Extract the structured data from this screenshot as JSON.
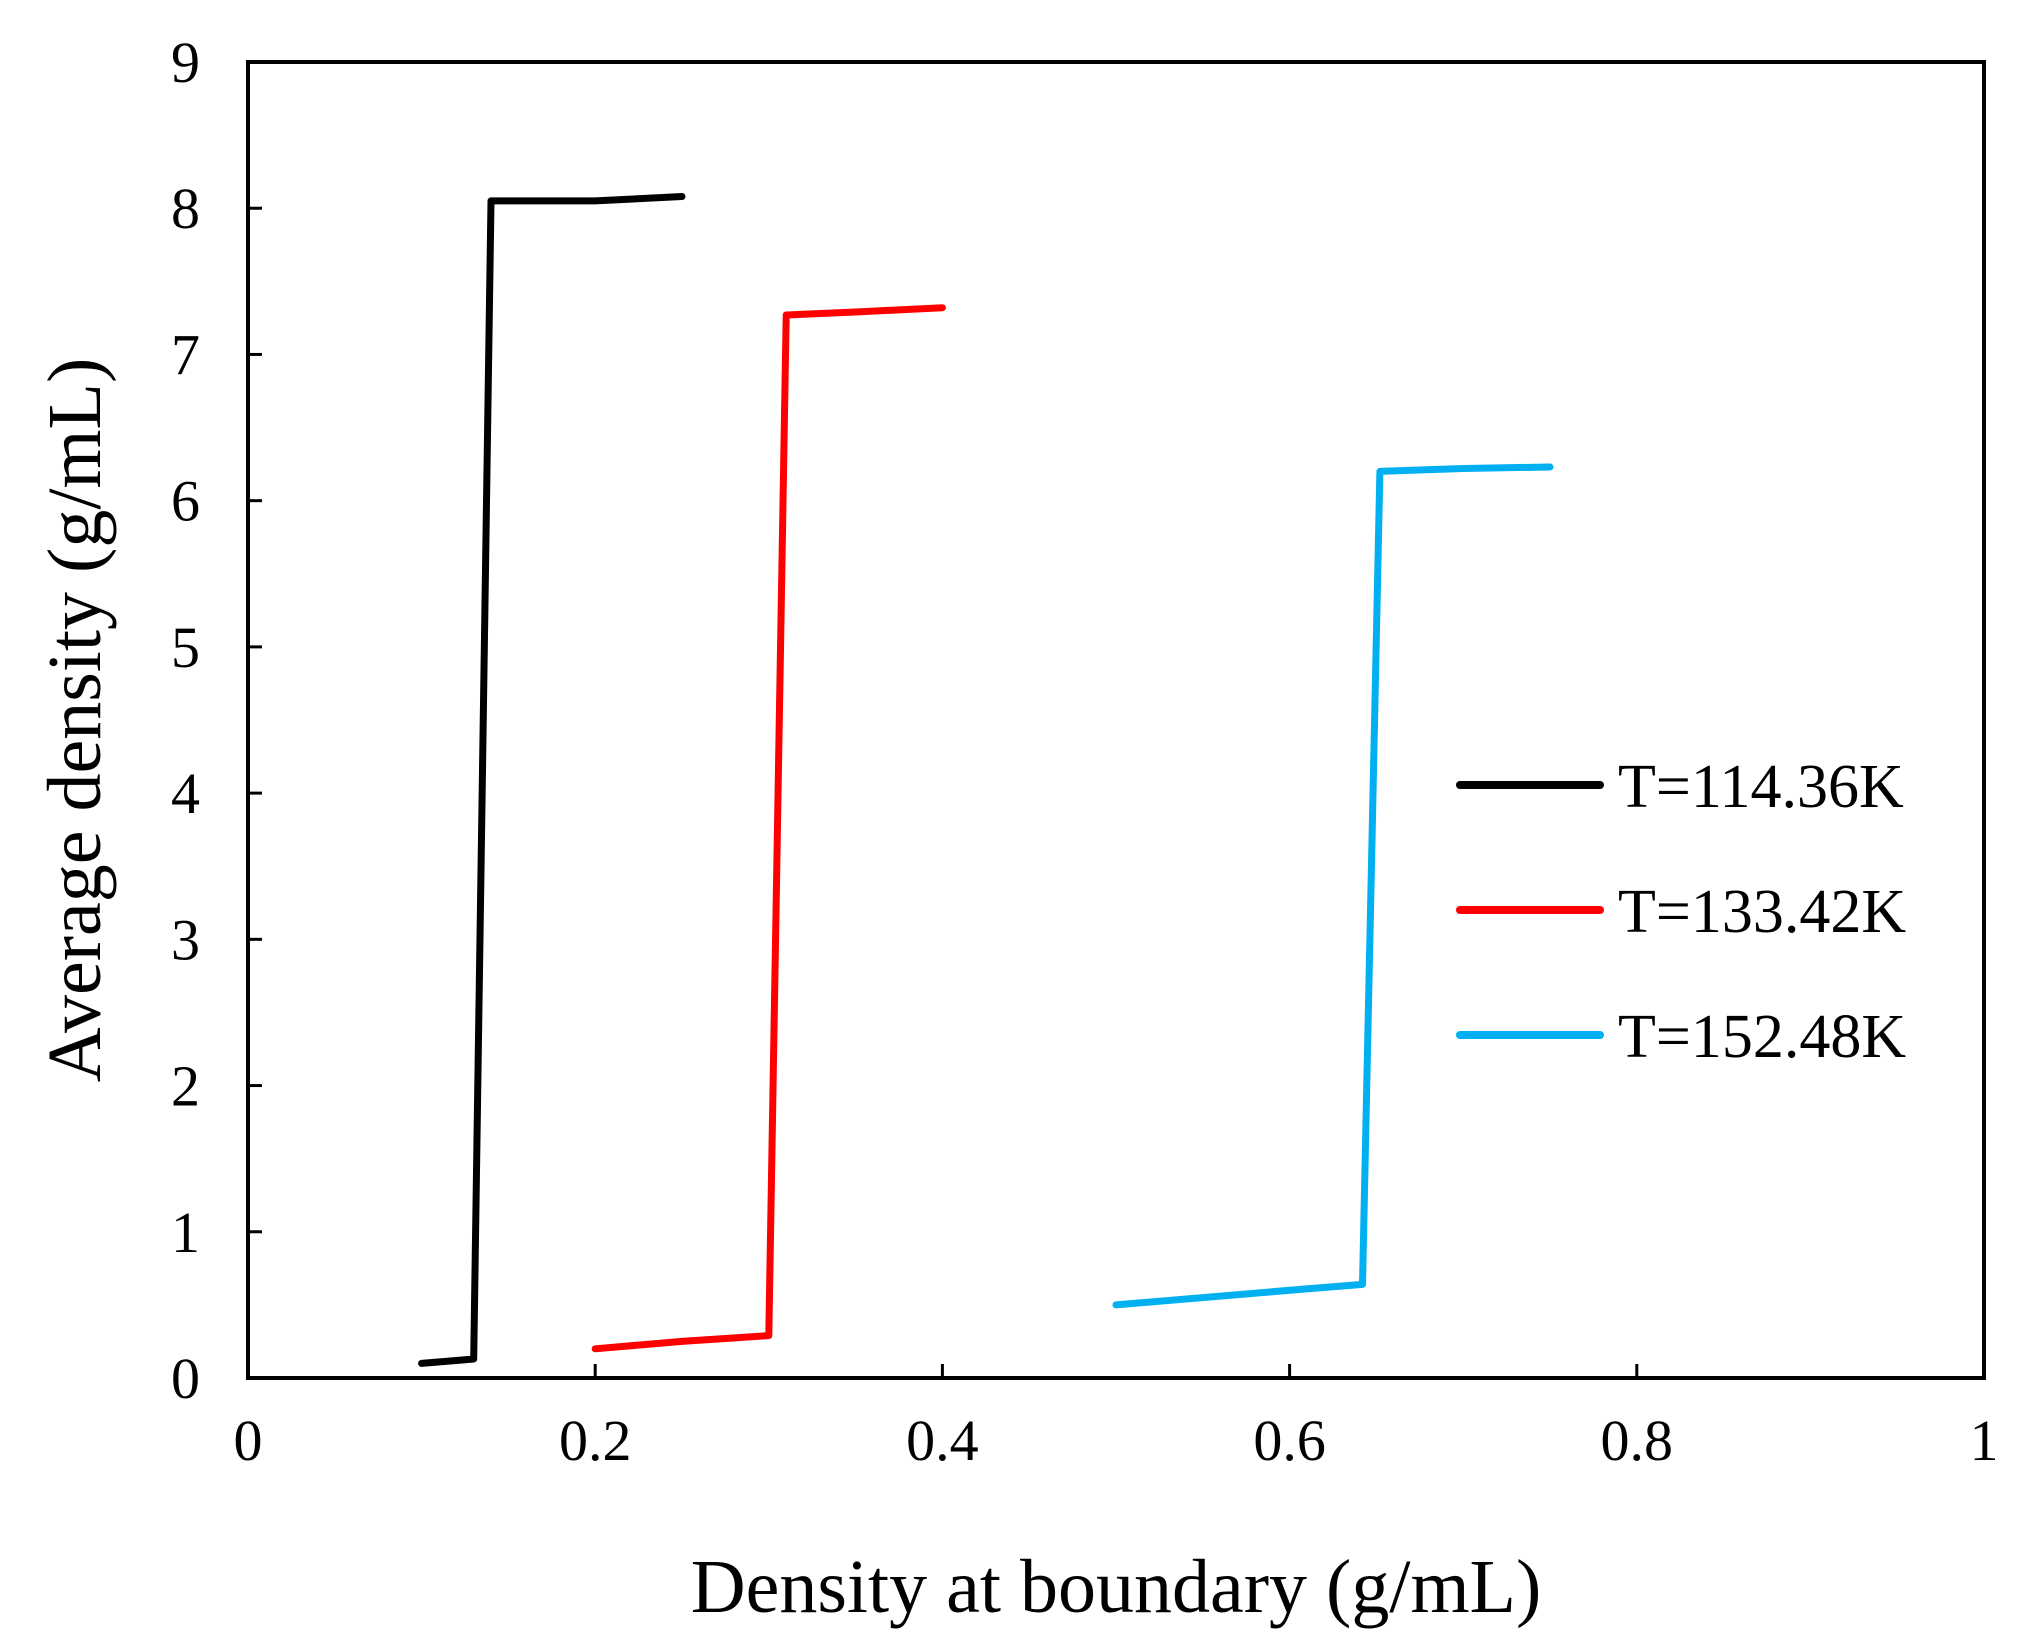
{
  "chart_data": {
    "type": "line",
    "title": "",
    "xlabel": "Density at boundary (g/mL)",
    "ylabel": "Average density (g/mL)",
    "xlim": [
      0,
      1
    ],
    "ylim": [
      0,
      9
    ],
    "grid": false,
    "legend_position": "right",
    "x_ticks": [
      0,
      0.2,
      0.4,
      0.6,
      0.8,
      1
    ],
    "x_tick_labels": [
      "0",
      "0.2",
      "0.4",
      "0.6",
      "0.8",
      "1"
    ],
    "y_ticks": [
      0,
      1,
      2,
      3,
      4,
      5,
      6,
      7,
      8,
      9
    ],
    "y_tick_labels": [
      "0",
      "1",
      "2",
      "3",
      "4",
      "5",
      "6",
      "7",
      "8",
      "9"
    ],
    "series": [
      {
        "name": "T=114.36K",
        "color": "#000000",
        "x": [
          0.1,
          0.12,
          0.13,
          0.14,
          0.2,
          0.25
        ],
        "y": [
          0.1,
          0.12,
          0.13,
          8.05,
          8.05,
          8.08
        ]
      },
      {
        "name": "T=133.42K",
        "color": "#ff0000",
        "x": [
          0.2,
          0.25,
          0.3,
          0.31,
          0.35,
          0.4
        ],
        "y": [
          0.2,
          0.25,
          0.29,
          7.27,
          7.29,
          7.32
        ]
      },
      {
        "name": "T=152.48K",
        "color": "#00b0f0",
        "x": [
          0.5,
          0.6,
          0.642,
          0.652,
          0.7,
          0.75
        ],
        "y": [
          0.5,
          0.6,
          0.64,
          6.2,
          6.22,
          6.23
        ]
      }
    ]
  }
}
